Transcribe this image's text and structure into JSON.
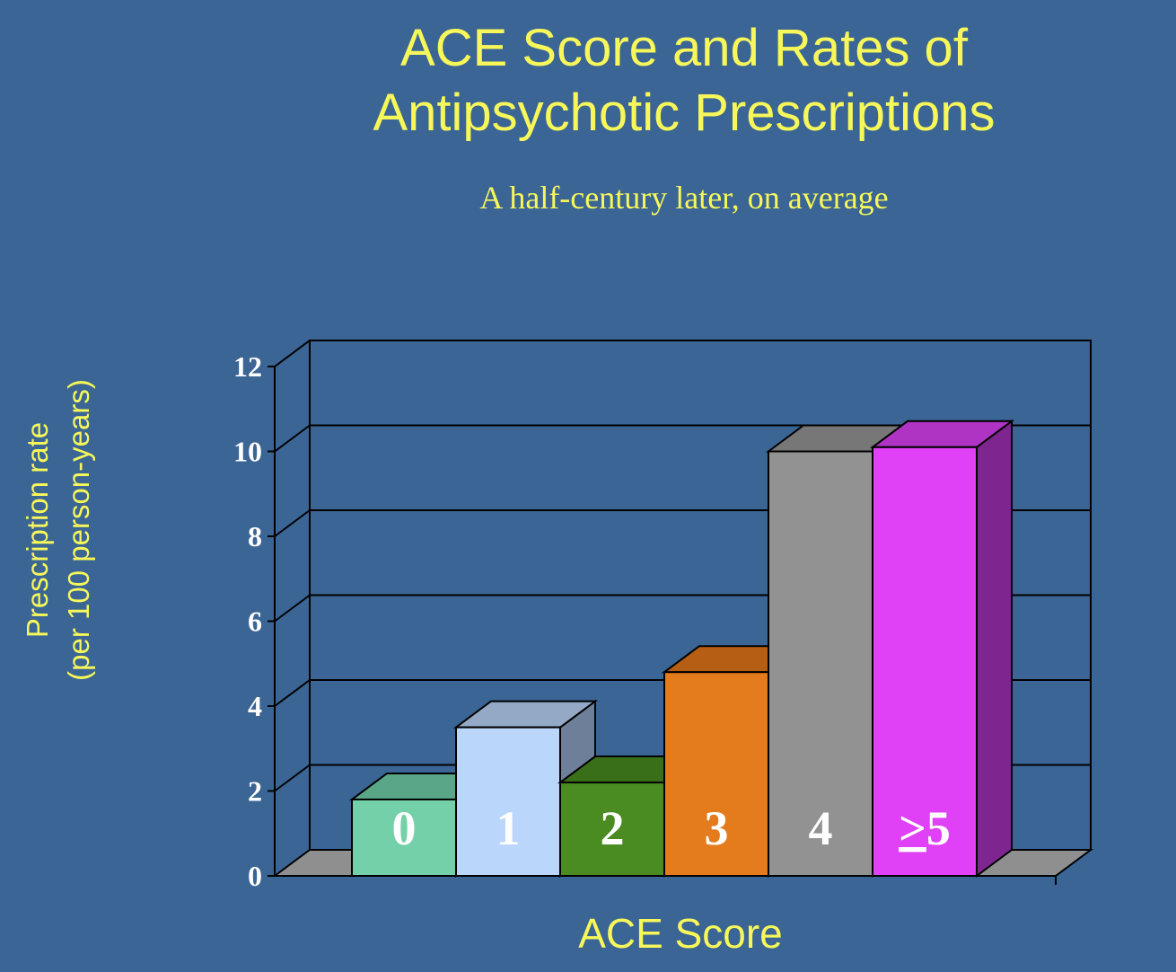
{
  "chart_data": {
    "type": "bar",
    "title_lines": [
      "ACE Score and Rates of",
      "Antipsychotic Prescriptions"
    ],
    "subtitle": "A half-century later, on average",
    "ylabel_lines": [
      "Prescription rate",
      "(per 100 person-years)"
    ],
    "xlabel": "ACE Score",
    "categories": [
      "0",
      "1",
      "2",
      "3",
      "4",
      ">5"
    ],
    "category_labels": [
      {
        "main": "0",
        "prefix": ""
      },
      {
        "main": "1",
        "prefix": ""
      },
      {
        "main": "2",
        "prefix": ""
      },
      {
        "main": "3",
        "prefix": ""
      },
      {
        "main": "4",
        "prefix": ""
      },
      {
        "main": "5",
        "prefix": ">"
      }
    ],
    "values": [
      1.8,
      3.5,
      2.2,
      4.8,
      10.0,
      10.1
    ],
    "ylim": [
      0,
      12
    ],
    "yticks": [
      "0",
      "2",
      "4",
      "6",
      "8",
      "10",
      "12"
    ],
    "grid": true,
    "legend": "none",
    "colors": {
      "background": "#3a6594",
      "text": "#f7f75a",
      "bars": [
        {
          "front": "#74d0a8",
          "top": "#5aa688",
          "side": "#4a8c72"
        },
        {
          "front": "#bad6fb",
          "top": "#93a9c6",
          "side": "#6e8099"
        },
        {
          "front": "#4a8b22",
          "top": "#3a6f1a",
          "side": "#2f5a14"
        },
        {
          "front": "#e47b1c",
          "top": "#b65f14",
          "side": "#96500f"
        },
        {
          "front": "#929292",
          "top": "#777777",
          "side": "#666666"
        },
        {
          "front": "#e041f6",
          "top": "#b034c4",
          "side": "#7e2590"
        }
      ]
    }
  }
}
